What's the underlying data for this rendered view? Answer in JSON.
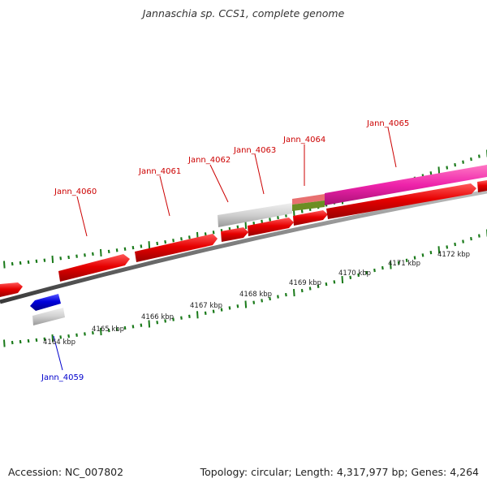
{
  "title": "Jannaschia sp. CCS1, complete genome",
  "footer": {
    "accession": "Accession: NC_007802",
    "summary": "Topology: circular; Length: 4,317,977 bp; Genes: 4,264"
  },
  "colors": {
    "gene_forward": "#e60000",
    "gene_reverse": "#0000dd",
    "gene_other": "#c8c8c8",
    "gene_highlight": "#ee3399",
    "tick": "#1a7a1a",
    "backbone": "#7a7a7a",
    "label_red": "#cc0000",
    "label_blue": "#0000cc"
  },
  "genes": [
    {
      "name": "Jann_4059",
      "color": "blue",
      "strand": "reverse"
    },
    {
      "name": "Jann_4060",
      "color": "red",
      "strand": "forward"
    },
    {
      "name": "Jann_4061",
      "color": "red",
      "strand": "forward"
    },
    {
      "name": "Jann_4062",
      "color": "red",
      "strand": "forward"
    },
    {
      "name": "Jann_4063",
      "color": "red",
      "strand": "forward"
    },
    {
      "name": "Jann_4064",
      "color": "red",
      "strand": "forward"
    },
    {
      "name": "Jann_4065",
      "color": "red",
      "strand": "forward"
    }
  ],
  "kbp_labels": [
    "4164 kbp",
    "4165 kbp",
    "4166 kbp",
    "4167 kbp",
    "4168 kbp",
    "4169 kbp",
    "4170 kbp",
    "4171 kbp",
    "4172 kbp"
  ]
}
